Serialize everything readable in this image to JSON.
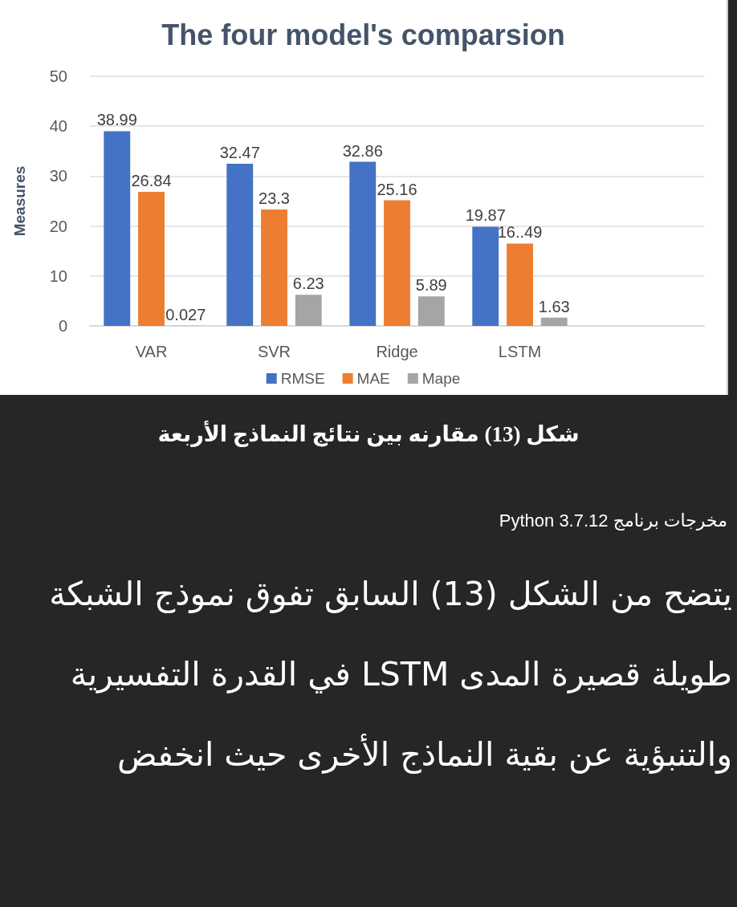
{
  "chart_data": {
    "type": "bar",
    "title": "The four model's comparsion",
    "ylabel": "Measures",
    "categories": [
      "VAR",
      "SVR",
      "Ridge",
      "LSTM",
      null
    ],
    "series": [
      {
        "name": "RMSE",
        "color": "#4472c4",
        "values": [
          38.99,
          32.47,
          32.86,
          19.87,
          null
        ],
        "value_labels": [
          "38.99",
          "32.47",
          "32.86",
          "19.87",
          null
        ]
      },
      {
        "name": "MAE",
        "color": "#ed7d31",
        "values": [
          26.84,
          23.3,
          25.16,
          16.49,
          null
        ],
        "value_labels": [
          "26.84",
          "23.3",
          "25.16",
          "16..49",
          null
        ]
      },
      {
        "name": "Mape",
        "color": "#a5a5a5",
        "values": [
          0.027,
          6.23,
          5.89,
          1.63,
          null
        ],
        "value_labels": [
          "0.027",
          "6.23",
          "5.89",
          "1.63",
          null
        ]
      }
    ],
    "ylim": [
      0,
      50
    ],
    "yticks": [
      0,
      10,
      20,
      30,
      40,
      50
    ],
    "grid": "y",
    "legend": "bottom",
    "annotations": [
      "شكل (13) مقارنه بين نتائج النماذج الأربعة",
      "مخرجات برنامج Python 3.7.12",
      "يتضح من الشكل (13) السابق تفوق نموذج الشبكة طويلة قصيرة المدى LSTM في القدرة التفسيرية والتنبؤية عن بقية النماذج الأخرى حيث انخفض"
    ]
  }
}
